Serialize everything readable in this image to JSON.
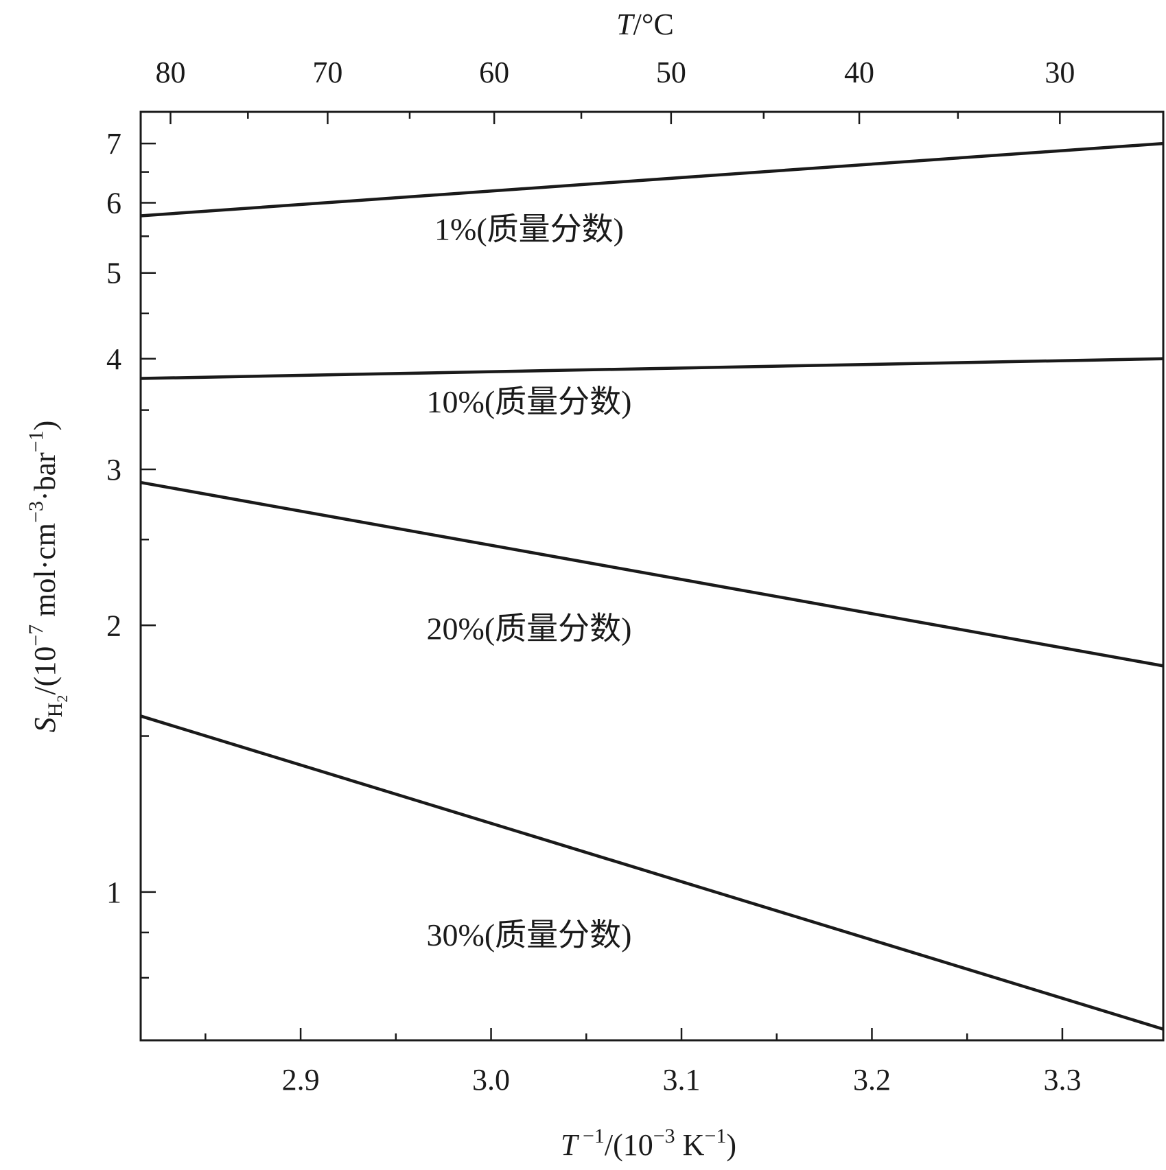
{
  "chart_data": {
    "type": "line",
    "title": "",
    "xlabel": "T⁻¹/(10⁻³ K⁻¹)",
    "x2label": "T/°C",
    "ylabel": "S_H2/(10⁻⁷ mol·cm⁻³·bar⁻¹)",
    "xlim": [
      2.816,
      3.353
    ],
    "ylim": [
      0.68,
      7.6
    ],
    "yscale": "log",
    "grid": false,
    "x_ticks": [
      2.9,
      3.0,
      3.1,
      3.2,
      3.3
    ],
    "x_tick_labels": [
      "2.9",
      "3.0",
      "3.1",
      "3.2",
      "3.3"
    ],
    "x_minor_ticks": [
      2.85,
      2.95,
      3.05,
      3.15,
      3.25
    ],
    "top_axis": {
      "unit": "°C",
      "ticks": [
        80,
        70,
        60,
        50,
        40,
        30
      ],
      "tick_labels": [
        "80",
        "70",
        "60",
        "50",
        "40",
        "30"
      ],
      "minor_ticks": [
        75,
        65,
        55,
        45,
        35
      ]
    },
    "y_ticks": [
      1,
      2,
      3,
      4,
      5,
      6,
      7
    ],
    "y_tick_labels": [
      "1",
      "2",
      "3",
      "4",
      "5",
      "6",
      "7"
    ],
    "y_minor_ticks": [
      0.8,
      0.9,
      1.5,
      2.5,
      3.5,
      4.5,
      5.5,
      6.5
    ],
    "series": [
      {
        "name": "1%(质量分数)",
        "x": [
          2.816,
          3.353
        ],
        "y": [
          5.8,
          7.0
        ],
        "label_at": [
          3.02,
          5.45
        ]
      },
      {
        "name": "10%(质量分数)",
        "x": [
          2.816,
          3.353
        ],
        "y": [
          3.8,
          4.0
        ],
        "label_at": [
          3.02,
          3.48
        ]
      },
      {
        "name": "20%(质量分数)",
        "x": [
          2.816,
          3.353
        ],
        "y": [
          2.9,
          1.8
        ],
        "label_at": [
          3.02,
          1.93
        ]
      },
      {
        "name": "30%(质量分数)",
        "x": [
          2.816,
          3.353
        ],
        "y": [
          1.58,
          0.7
        ],
        "label_at": [
          3.02,
          0.87
        ]
      }
    ]
  }
}
